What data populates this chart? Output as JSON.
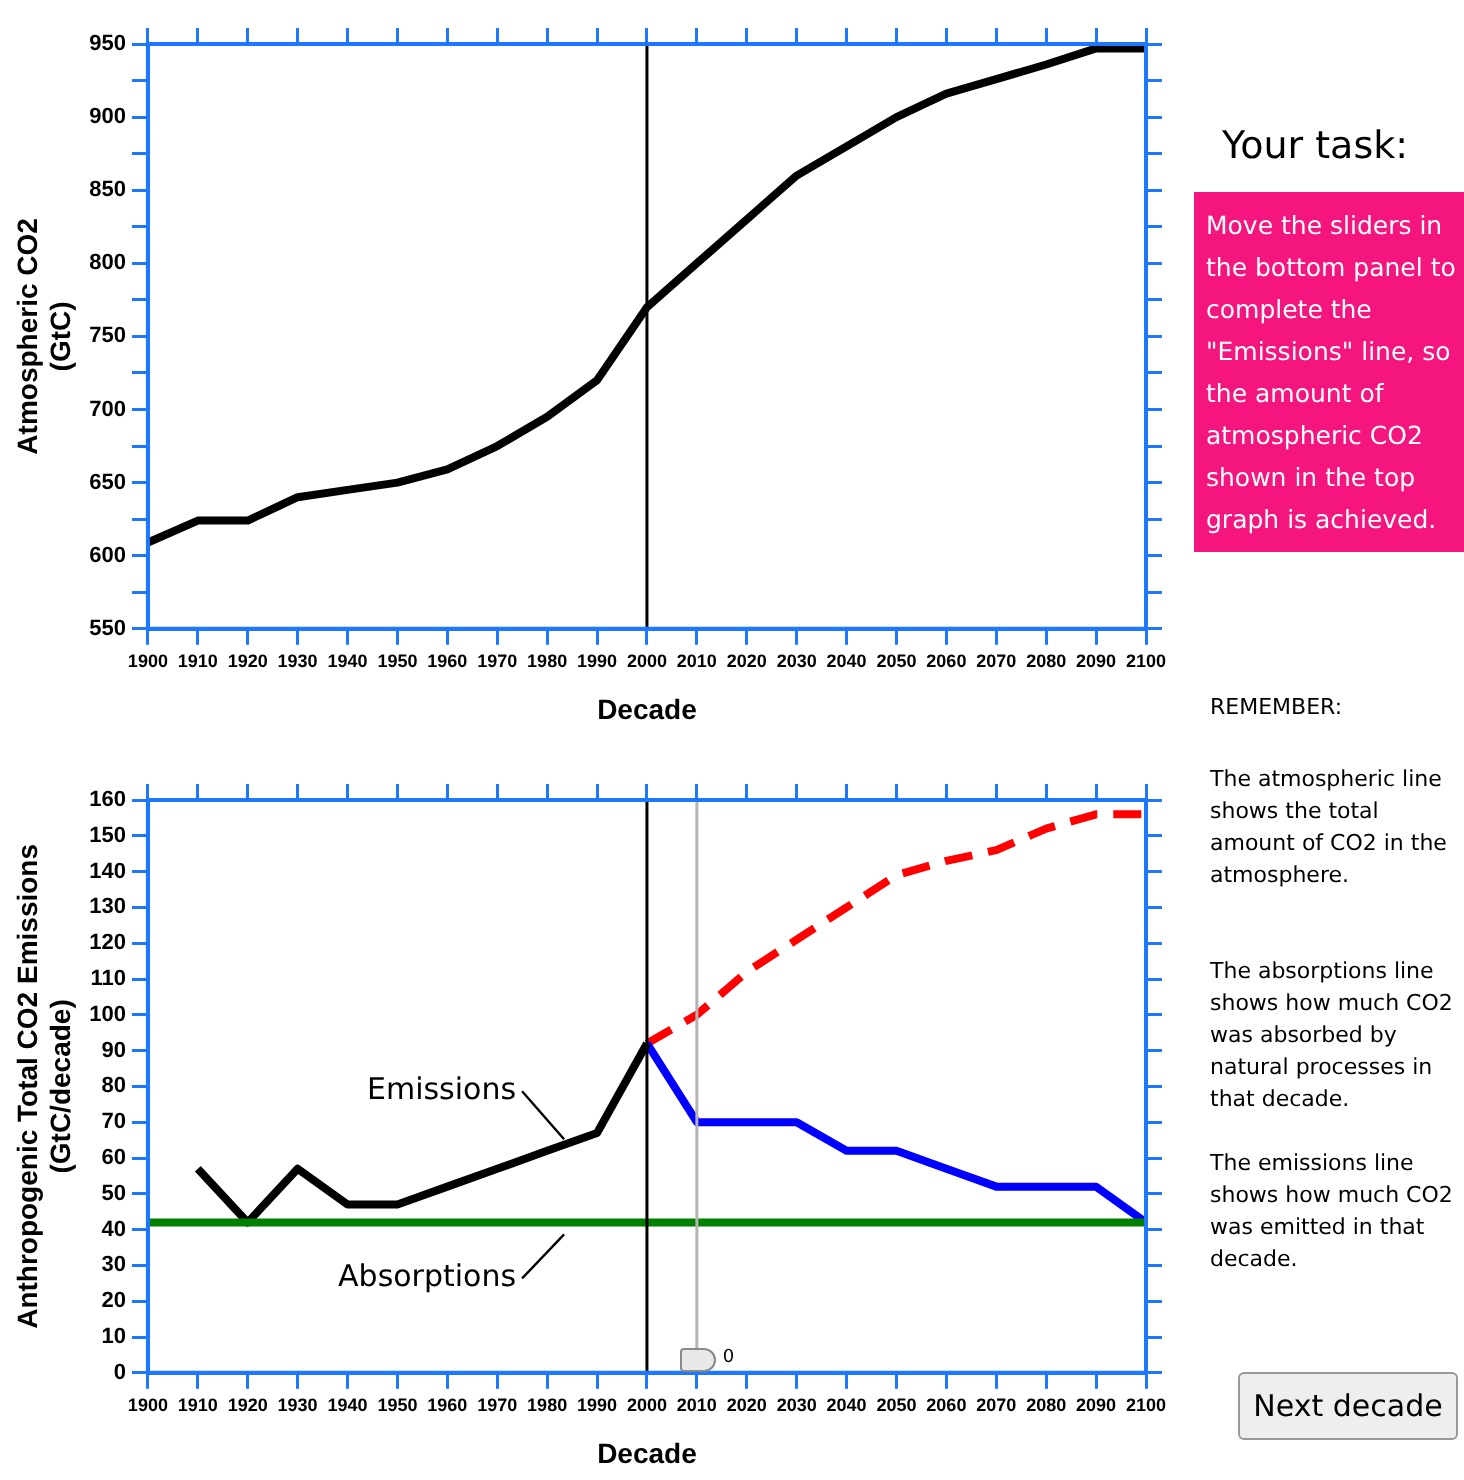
{
  "chart_data": [
    {
      "type": "line",
      "ylabel": "Atmospheric CO2\n(GtC)",
      "xlabel": "Decade",
      "x": [
        1900,
        1910,
        1920,
        1930,
        1940,
        1950,
        1960,
        1970,
        1980,
        1990,
        2000,
        2010,
        2020,
        2030,
        2040,
        2050,
        2060,
        2070,
        2080,
        2090,
        2100
      ],
      "series": [
        {
          "color": "#000000",
          "values": [
            609,
            624,
            624,
            640,
            645,
            650,
            659,
            675,
            695,
            720,
            770,
            800,
            830,
            860,
            880,
            900,
            916,
            926,
            936,
            947,
            947
          ]
        }
      ],
      "xlim": [
        1900,
        2100
      ],
      "xticks": [
        1900,
        1910,
        1920,
        1930,
        1940,
        1950,
        1960,
        1970,
        1980,
        1990,
        2000,
        2010,
        2020,
        2030,
        2040,
        2050,
        2060,
        2070,
        2080,
        2090,
        2100
      ],
      "ylim": [
        550,
        950
      ],
      "yticks": [
        550,
        {
          "value": 575,
          "label": null
        },
        600,
        {
          "value": 625,
          "label": null
        },
        650,
        {
          "value": 675,
          "label": null
        },
        700,
        {
          "value": 725,
          "label": null
        },
        750,
        {
          "value": 775,
          "label": null
        },
        800,
        {
          "value": 825,
          "label": null
        },
        850,
        {
          "value": 875,
          "label": null
        },
        900,
        {
          "value": 925,
          "label": null
        },
        950
      ],
      "ref_lines": [
        {
          "axis": "x",
          "value": 2000,
          "color": "#000000"
        }
      ],
      "grid": false,
      "legend": false,
      "line_style": "solid",
      "marker": "none"
    },
    {
      "type": "line",
      "ylabel": "Anthropogenic Total CO2 Emissions\n(GtC/decade)",
      "xlabel": "Decade",
      "series": [
        {
          "color": "#008000",
          "x": [
            1900,
            2100
          ],
          "values": [
            42,
            42
          ]
        },
        {
          "color": "#000000",
          "x": [
            1910,
            1920,
            1930,
            1940,
            1950,
            1960,
            1970,
            1980,
            1990,
            2000
          ],
          "values": [
            57,
            42,
            57,
            47,
            47,
            52,
            57,
            62,
            67,
            92
          ]
        },
        {
          "color": "#0000ff",
          "x": [
            2000,
            2010,
            2020,
            2030,
            2040,
            2050,
            2060,
            2070,
            2080,
            2090,
            2100
          ],
          "values": [
            92,
            70,
            70,
            70,
            62,
            62,
            57,
            52,
            52,
            52,
            42
          ]
        },
        {
          "color": "#ff0000",
          "line_style": "dashed",
          "x": [
            2000,
            2010,
            2020,
            2030,
            2040,
            2050,
            2060,
            2070,
            2080,
            2090,
            2100
          ],
          "values": [
            92,
            100,
            112,
            121,
            130,
            139,
            143,
            146,
            152,
            156,
            156
          ]
        }
      ],
      "xlim": [
        1900,
        2100
      ],
      "xticks": [
        1900,
        1910,
        1920,
        1930,
        1940,
        1950,
        1960,
        1970,
        1980,
        1990,
        2000,
        2010,
        2020,
        2030,
        2040,
        2050,
        2060,
        2070,
        2080,
        2090,
        2100
      ],
      "ylim": [
        0,
        160
      ],
      "yticks": [
        0,
        10,
        20,
        30,
        40,
        50,
        60,
        70,
        80,
        90,
        100,
        110,
        120,
        130,
        140,
        150,
        160
      ],
      "ref_lines": [
        {
          "axis": "x",
          "value": 2000,
          "color": "#000000"
        },
        {
          "axis": "x",
          "value": 2010,
          "color": "#b4b4b4"
        }
      ],
      "annotations": [
        {
          "text": "Emissions",
          "x": 1985,
          "y": 63
        },
        {
          "text": "Absorptions",
          "x": 1985,
          "y": 42
        },
        "0"
      ],
      "grid": false,
      "legend": false,
      "line_style": "solid",
      "marker": "none"
    },
    {
      "type": "other",
      "title": "Your task:",
      "color": "#f5157f",
      "annotations": [
        "Move the sliders in the bottom panel to complete the \"Emissions\" line, so the amount of atmospheric CO2 shown in the top graph is achieved.",
        "REMEMBER:",
        "The atmospheric line shows the total amount of CO2 in the atmosphere.",
        "The absorptions line shows how much CO2 was absorbed by natural processes in that decade.",
        "The emissions line shows how much CO2 was emitted in that decade.",
        "Next decade"
      ]
    }
  ]
}
